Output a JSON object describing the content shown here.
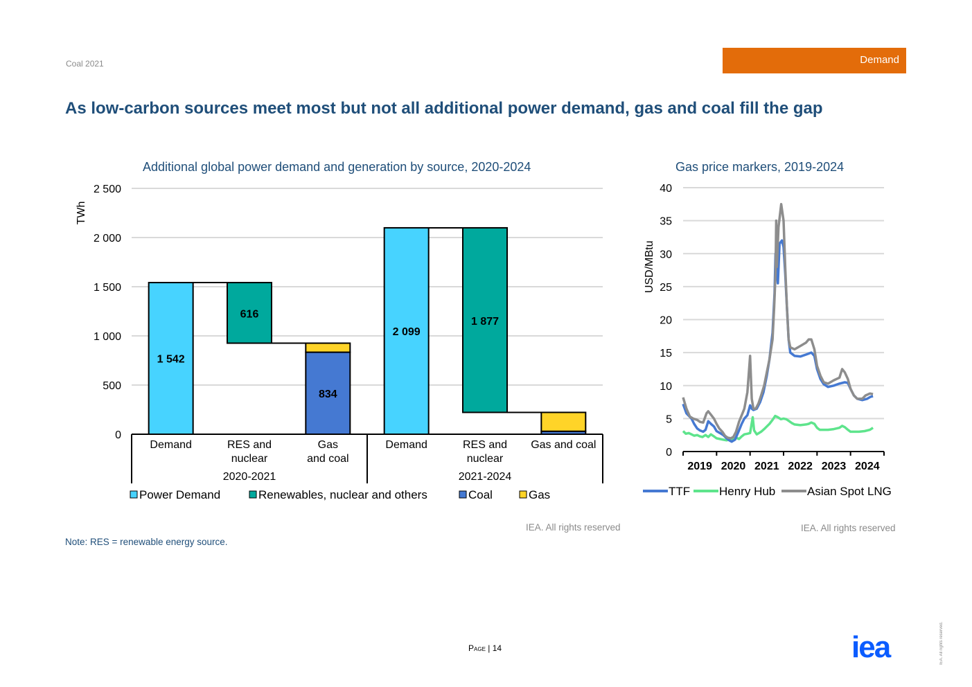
{
  "header": {
    "doc_label": "Coal 2021",
    "section_tag": "Demand"
  },
  "headline": "As low-carbon sources meet most but not all additional power demand, gas and coal fill the gap",
  "footer": {
    "note": "Note: RES = renewable energy source.",
    "page_word": "Page",
    "page_sep": "|",
    "page_number": "14",
    "rights_side": "IEA. All rights reserved.",
    "logo_text": "iea"
  },
  "colors": {
    "accent": "#e36c0a",
    "title": "#1f4e79",
    "power_demand": "#47d3ff",
    "renewables": "#00a99d",
    "coal": "#4579d2",
    "gas": "#ffd428",
    "ttf": "#4579d2",
    "henry_hub": "#5ee48c",
    "asian_lng": "#8d8d8d",
    "logo": "#0b5cff"
  },
  "chart_data": [
    {
      "type": "bar",
      "subtype": "waterfall",
      "title": "Additional global power demand and generation by source, 2020-2024",
      "ylabel": "TWh",
      "ylim": [
        0,
        2500
      ],
      "yticks": [
        0,
        500,
        1000,
        1500,
        2000,
        2500
      ],
      "ytick_labels": [
        "0",
        "500",
        "1 000",
        "1 500",
        "2 000",
        "2 500"
      ],
      "grid": true,
      "legend_position": "bottom",
      "groups": [
        {
          "label": "2020-2021",
          "categories": [
            "Demand",
            "RES and nuclear",
            "Gas and coal"
          ]
        },
        {
          "label": "2021-2024",
          "categories": [
            "Demand",
            "RES and nuclear",
            "Gas and coal"
          ]
        }
      ],
      "category_lines": [
        [
          "Demand"
        ],
        [
          "RES and",
          "nuclear"
        ],
        [
          "Gas",
          "and coal"
        ],
        [
          "Demand"
        ],
        [
          "RES and",
          "nuclear"
        ],
        [
          "Gas and coal"
        ]
      ],
      "series": [
        {
          "name": "Power Demand",
          "values": [
            1542,
            0,
            0,
            2099,
            0,
            0
          ]
        },
        {
          "name": "Renewables, nuclear and others",
          "values": [
            0,
            616,
            0,
            0,
            1877,
            0
          ]
        },
        {
          "name": "Coal",
          "values": [
            0,
            0,
            834,
            0,
            0,
            30
          ]
        },
        {
          "name": "Gas",
          "values": [
            0,
            0,
            92,
            0,
            0,
            192
          ]
        }
      ],
      "bar_bottoms": [
        0,
        926,
        0,
        0,
        222,
        0
      ],
      "data_labels": [
        "1 542",
        "616",
        "834",
        "2 099",
        "1 877",
        ""
      ],
      "source": "IEA. All rights reserved"
    },
    {
      "type": "line",
      "title": "Gas price markers, 2019-2024",
      "ylabel": "USD/MBtu",
      "ylim": [
        0,
        40
      ],
      "yticks": [
        0,
        5,
        10,
        15,
        20,
        25,
        30,
        35,
        40
      ],
      "xlim": [
        2019,
        2025
      ],
      "xticks": [
        2019,
        2020,
        2021,
        2022,
        2023,
        2024
      ],
      "grid": true,
      "legend_position": "bottom",
      "series": [
        {
          "name": "TTF",
          "points": [
            [
              2019.0,
              7.2
            ],
            [
              2019.1,
              5.8
            ],
            [
              2019.25,
              5.0
            ],
            [
              2019.33,
              4.2
            ],
            [
              2019.42,
              3.5
            ],
            [
              2019.5,
              3.2
            ],
            [
              2019.6,
              3.0
            ],
            [
              2019.67,
              3.3
            ],
            [
              2019.75,
              4.6
            ],
            [
              2019.83,
              4.2
            ],
            [
              2019.92,
              3.8
            ],
            [
              2020.0,
              3.1
            ],
            [
              2020.1,
              2.8
            ],
            [
              2020.2,
              2.5
            ],
            [
              2020.3,
              2.0
            ],
            [
              2020.38,
              1.7
            ],
            [
              2020.45,
              1.5
            ],
            [
              2020.55,
              1.8
            ],
            [
              2020.67,
              3.2
            ],
            [
              2020.75,
              4.2
            ],
            [
              2020.83,
              5.0
            ],
            [
              2020.92,
              5.5
            ],
            [
              2021.0,
              7.0
            ],
            [
              2021.05,
              6.5
            ],
            [
              2021.1,
              6.3
            ],
            [
              2021.2,
              6.5
            ],
            [
              2021.3,
              7.5
            ],
            [
              2021.4,
              9.0
            ],
            [
              2021.5,
              11.5
            ],
            [
              2021.58,
              14.0
            ],
            [
              2021.67,
              18.0
            ],
            [
              2021.73,
              24.0
            ],
            [
              2021.76,
              30.0
            ],
            [
              2021.8,
              27.0
            ],
            [
              2021.83,
              25.5
            ],
            [
              2021.88,
              31.5
            ],
            [
              2021.95,
              32.0
            ],
            [
              2022.0,
              31.0
            ],
            [
              2022.05,
              27.0
            ],
            [
              2022.1,
              22.0
            ],
            [
              2022.15,
              17.0
            ],
            [
              2022.2,
              15.0
            ],
            [
              2022.33,
              14.5
            ],
            [
              2022.5,
              14.4
            ],
            [
              2022.67,
              14.7
            ],
            [
              2022.83,
              15.0
            ],
            [
              2022.92,
              14.5
            ],
            [
              2023.0,
              12.5
            ],
            [
              2023.1,
              11.0
            ],
            [
              2023.2,
              10.2
            ],
            [
              2023.33,
              9.8
            ],
            [
              2023.5,
              10.0
            ],
            [
              2023.67,
              10.3
            ],
            [
              2023.83,
              10.5
            ],
            [
              2023.92,
              10.4
            ],
            [
              2024.0,
              9.5
            ],
            [
              2024.1,
              8.5
            ],
            [
              2024.2,
              8.0
            ],
            [
              2024.35,
              7.8
            ],
            [
              2024.5,
              8.0
            ],
            [
              2024.6,
              8.3
            ],
            [
              2024.67,
              8.4
            ]
          ]
        },
        {
          "name": "Henry Hub",
          "points": [
            [
              2019.0,
              3.1
            ],
            [
              2019.08,
              2.7
            ],
            [
              2019.17,
              2.8
            ],
            [
              2019.25,
              2.6
            ],
            [
              2019.33,
              2.4
            ],
            [
              2019.42,
              2.5
            ],
            [
              2019.5,
              2.3
            ],
            [
              2019.58,
              2.2
            ],
            [
              2019.67,
              2.5
            ],
            [
              2019.75,
              2.2
            ],
            [
              2019.83,
              2.6
            ],
            [
              2019.92,
              2.3
            ],
            [
              2020.0,
              2.0
            ],
            [
              2020.1,
              1.9
            ],
            [
              2020.2,
              1.8
            ],
            [
              2020.3,
              1.7
            ],
            [
              2020.42,
              1.9
            ],
            [
              2020.5,
              1.8
            ],
            [
              2020.58,
              2.1
            ],
            [
              2020.67,
              1.9
            ],
            [
              2020.75,
              2.3
            ],
            [
              2020.83,
              2.6
            ],
            [
              2020.92,
              2.7
            ],
            [
              2021.0,
              2.8
            ],
            [
              2021.08,
              5.2
            ],
            [
              2021.12,
              3.2
            ],
            [
              2021.2,
              2.6
            ],
            [
              2021.33,
              3.0
            ],
            [
              2021.42,
              3.4
            ],
            [
              2021.5,
              3.8
            ],
            [
              2021.58,
              4.2
            ],
            [
              2021.67,
              4.8
            ],
            [
              2021.75,
              5.4
            ],
            [
              2021.83,
              5.2
            ],
            [
              2021.92,
              4.9
            ],
            [
              2022.0,
              5.0
            ],
            [
              2022.08,
              4.9
            ],
            [
              2022.17,
              4.6
            ],
            [
              2022.25,
              4.3
            ],
            [
              2022.33,
              4.1
            ],
            [
              2022.5,
              4.0
            ],
            [
              2022.67,
              4.1
            ],
            [
              2022.75,
              4.2
            ],
            [
              2022.83,
              4.4
            ],
            [
              2022.92,
              4.2
            ],
            [
              2023.0,
              3.6
            ],
            [
              2023.08,
              3.3
            ],
            [
              2023.17,
              3.3
            ],
            [
              2023.33,
              3.3
            ],
            [
              2023.5,
              3.4
            ],
            [
              2023.67,
              3.6
            ],
            [
              2023.75,
              3.9
            ],
            [
              2023.83,
              3.7
            ],
            [
              2023.92,
              3.3
            ],
            [
              2024.0,
              3.0
            ],
            [
              2024.1,
              3.0
            ],
            [
              2024.25,
              3.0
            ],
            [
              2024.42,
              3.1
            ],
            [
              2024.58,
              3.3
            ],
            [
              2024.67,
              3.6
            ]
          ]
        },
        {
          "name": "Asian Spot LNG",
          "points": [
            [
              2019.0,
              8.2
            ],
            [
              2019.1,
              6.5
            ],
            [
              2019.2,
              5.3
            ],
            [
              2019.3,
              5.0
            ],
            [
              2019.42,
              4.8
            ],
            [
              2019.5,
              4.5
            ],
            [
              2019.6,
              4.4
            ],
            [
              2019.7,
              5.8
            ],
            [
              2019.75,
              6.1
            ],
            [
              2019.83,
              5.6
            ],
            [
              2019.92,
              5.0
            ],
            [
              2020.0,
              4.2
            ],
            [
              2020.08,
              3.5
            ],
            [
              2020.17,
              3.0
            ],
            [
              2020.25,
              2.4
            ],
            [
              2020.33,
              2.1
            ],
            [
              2020.42,
              2.0
            ],
            [
              2020.5,
              2.2
            ],
            [
              2020.58,
              3.0
            ],
            [
              2020.67,
              4.5
            ],
            [
              2020.75,
              5.5
            ],
            [
              2020.83,
              6.5
            ],
            [
              2020.92,
              9.0
            ],
            [
              2021.0,
              14.5
            ],
            [
              2021.05,
              8.0
            ],
            [
              2021.1,
              6.5
            ],
            [
              2021.17,
              6.5
            ],
            [
              2021.25,
              7.3
            ],
            [
              2021.33,
              8.5
            ],
            [
              2021.42,
              10.0
            ],
            [
              2021.5,
              12.0
            ],
            [
              2021.58,
              14.0
            ],
            [
              2021.67,
              17.0
            ],
            [
              2021.72,
              22.0
            ],
            [
              2021.76,
              27.0
            ],
            [
              2021.78,
              35.0
            ],
            [
              2021.8,
              28.0
            ],
            [
              2021.85,
              34.0
            ],
            [
              2021.93,
              37.5
            ],
            [
              2022.0,
              35.0
            ],
            [
              2022.05,
              28.0
            ],
            [
              2022.1,
              22.0
            ],
            [
              2022.15,
              17.0
            ],
            [
              2022.2,
              15.8
            ],
            [
              2022.33,
              15.5
            ],
            [
              2022.5,
              16.0
            ],
            [
              2022.67,
              16.5
            ],
            [
              2022.75,
              17.0
            ],
            [
              2022.83,
              17.0
            ],
            [
              2022.92,
              15.5
            ],
            [
              2023.0,
              13.0
            ],
            [
              2023.1,
              11.5
            ],
            [
              2023.2,
              10.5
            ],
            [
              2023.33,
              10.3
            ],
            [
              2023.5,
              10.8
            ],
            [
              2023.67,
              11.2
            ],
            [
              2023.75,
              12.5
            ],
            [
              2023.83,
              12.0
            ],
            [
              2023.92,
              11.0
            ],
            [
              2024.0,
              9.5
            ],
            [
              2024.1,
              8.5
            ],
            [
              2024.2,
              8.0
            ],
            [
              2024.35,
              8.0
            ],
            [
              2024.45,
              8.5
            ],
            [
              2024.58,
              8.8
            ],
            [
              2024.67,
              8.7
            ]
          ]
        }
      ],
      "source": "IEA. All rights reserved"
    }
  ]
}
